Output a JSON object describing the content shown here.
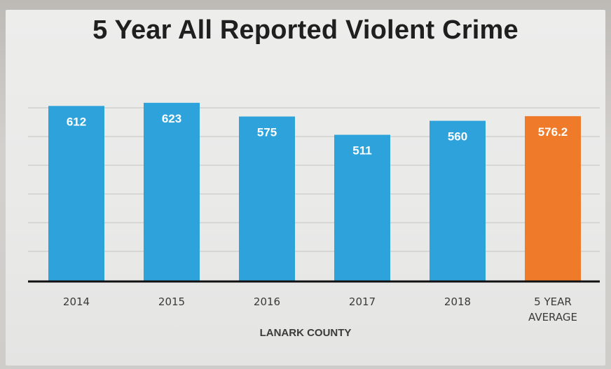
{
  "chart_data": {
    "type": "bar",
    "title": "5 Year All Reported Violent Crime",
    "xlabel": "LANARK COUNTY",
    "ylabel": "",
    "categories": [
      "2014",
      "2015",
      "2016",
      "2017",
      "2018",
      "5 YEAR AVERAGE"
    ],
    "values": [
      612,
      623,
      575,
      511,
      560,
      576.2
    ],
    "value_labels": [
      "612",
      "623",
      "575",
      "511",
      "560",
      "576.2"
    ],
    "bar_colors": [
      "#2ea3db",
      "#2ea3db",
      "#2ea3db",
      "#2ea3db",
      "#2ea3db",
      "#ee7a2a"
    ],
    "ylim": [
      0,
      700
    ],
    "grid": true,
    "legend": "none"
  }
}
